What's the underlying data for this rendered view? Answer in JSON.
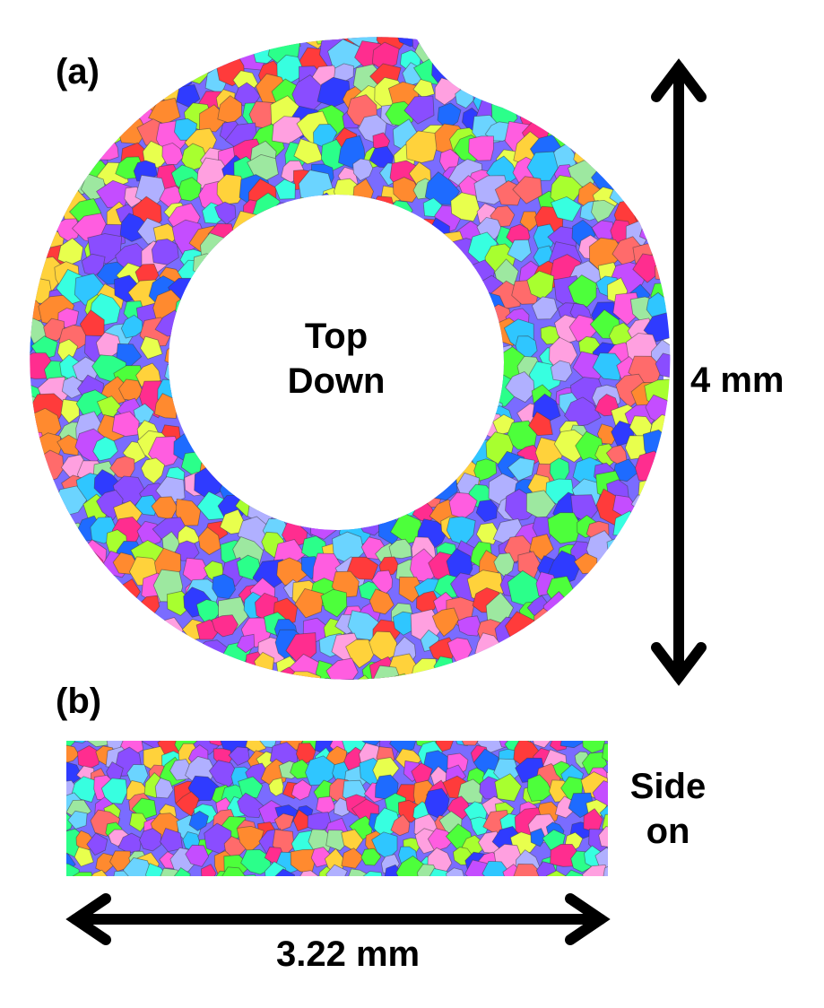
{
  "panels": {
    "a": {
      "label": "(a)",
      "view_line1": "Top",
      "view_line2": "Down",
      "scale": "4 mm"
    },
    "b": {
      "label": "(b)",
      "view_line1": "Side",
      "view_line2": "on",
      "scale": "3.22 mm"
    }
  },
  "colors": {
    "grains": [
      "#ff3b3b",
      "#ff2d8f",
      "#ff5de0",
      "#c44dff",
      "#8a4dff",
      "#2f3bff",
      "#1e6bff",
      "#2fc6ff",
      "#37ffe0",
      "#2bff8a",
      "#4dff3b",
      "#a8ff2f",
      "#e8ff4d",
      "#ffd23b",
      "#ff8a2f",
      "#ffa0e0",
      "#b0b0ff",
      "#9de8a0",
      "#ff6b6b",
      "#6bd4ff"
    ],
    "text": "#000000",
    "background": "#ffffff"
  }
}
